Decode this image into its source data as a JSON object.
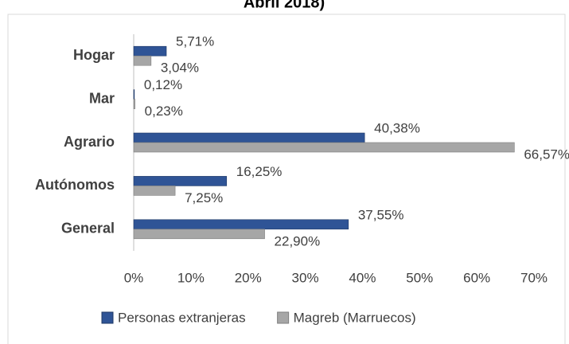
{
  "chart_data": {
    "type": "bar",
    "orientation": "horizontal",
    "title": "Abril 2018)",
    "categories": [
      "Hogar",
      "Mar",
      "Agrario",
      "Autónomos",
      "General"
    ],
    "series": [
      {
        "name": "Personas extranjeras",
        "color": "#2f5496",
        "values": [
          5.71,
          0.12,
          40.38,
          16.25,
          37.55
        ],
        "value_labels": [
          "5,71%",
          "0,12%",
          "40,38%",
          "16,25%",
          "37,55%"
        ]
      },
      {
        "name": "Magreb (Marruecos)",
        "color": "#a6a6a6",
        "values": [
          3.04,
          0.23,
          66.57,
          7.25,
          22.9
        ],
        "value_labels": [
          "3,04%",
          "0,23%",
          "66,57%",
          "7,25%",
          "22,90%"
        ]
      }
    ],
    "xlim": [
      0,
      70
    ],
    "xticks": [
      {
        "value": 0,
        "label": "0%"
      },
      {
        "value": 10,
        "label": "10%"
      },
      {
        "value": 20,
        "label": "20%"
      },
      {
        "value": 30,
        "label": "30%"
      },
      {
        "value": 40,
        "label": "40%"
      },
      {
        "value": 50,
        "label": "50%"
      },
      {
        "value": 60,
        "label": "60%"
      },
      {
        "value": 70,
        "label": "70%"
      }
    ],
    "grid": false,
    "legend": "bottom"
  }
}
